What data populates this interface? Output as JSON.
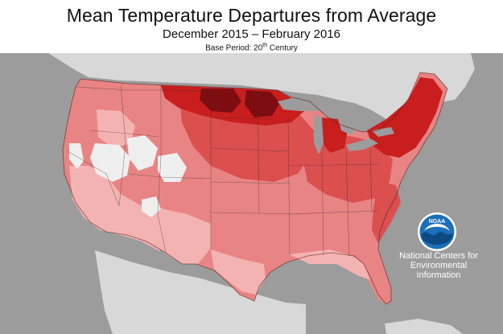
{
  "header": {
    "title": "Mean Temperature Departures from Average",
    "subtitle": "December 2015 – February 2016",
    "base_period_prefix": "Base Period: 20",
    "base_period_sup": "th",
    "base_period_suffix": " Century"
  },
  "logo": {
    "emblem_text": "NOAA",
    "org_lines": [
      "National Centers for",
      "Environmental",
      "Information"
    ]
  },
  "colors": {
    "ocean": "#9c9c9c",
    "foreign_land": "#d8d8d8",
    "near_average": "#efefef",
    "slightly_above": "#f4b3b3",
    "above": "#e98484",
    "well_above": "#db4f4f",
    "much_above": "#c81e1e",
    "record_warm": "#7e0d12",
    "noaa_blue": "#1c6fb8"
  }
}
